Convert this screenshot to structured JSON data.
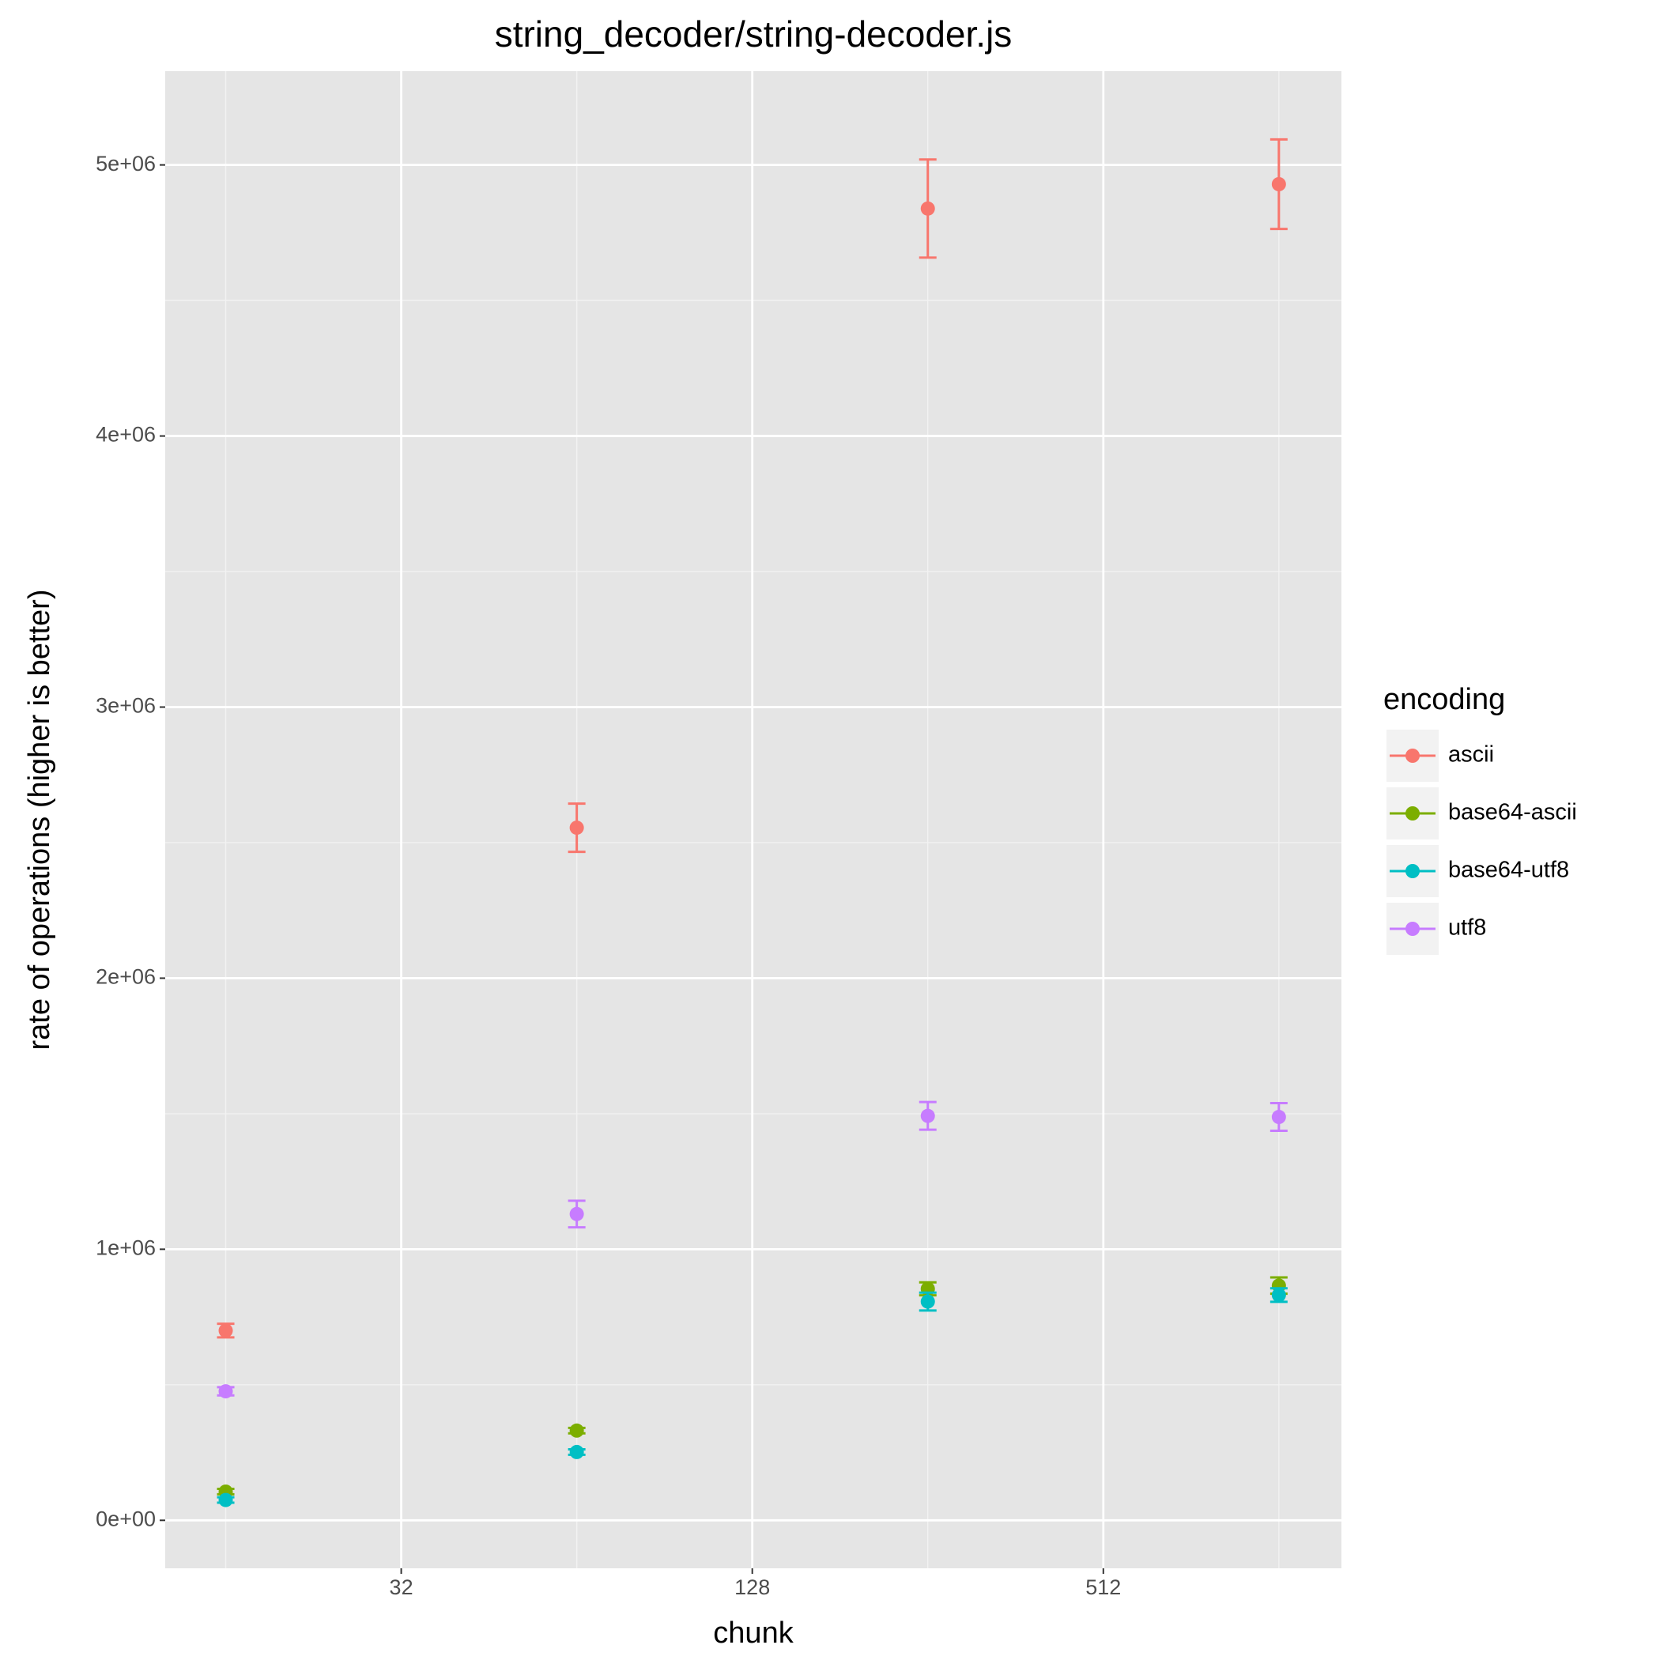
{
  "chart_data": {
    "type": "errorbar",
    "title": "string_decoder/string-decoder.js",
    "x_label": "chunk",
    "y_label": "rate of operations (higher is better)",
    "legend_title": "encoding",
    "legend_position": "right",
    "x": [
      16,
      64,
      256,
      1024
    ],
    "xlog_base": 2,
    "xlim": [
      12.6,
      1311
    ],
    "xticks": [
      32,
      128,
      512
    ],
    "ylim": [
      -177000,
      5346000
    ],
    "yticks": [
      {
        "value": 0,
        "label": "0e+00"
      },
      {
        "value": 1000000,
        "label": "1e+06"
      },
      {
        "value": 2000000,
        "label": "2e+06"
      },
      {
        "value": 3000000,
        "label": "3e+06"
      },
      {
        "value": 4000000,
        "label": "4e+06"
      },
      {
        "value": 5000000,
        "label": "5e+06"
      }
    ],
    "grid": true,
    "minor_grid": true,
    "series": [
      {
        "name": "ascii",
        "color": "#F8766D",
        "values": [
          700000,
          2555000,
          4839000,
          4929000
        ],
        "errors": [
          25000,
          89000,
          181000,
          165000
        ]
      },
      {
        "name": "base64-ascii",
        "color": "#7CAE00",
        "values": [
          106000,
          331000,
          854000,
          866000
        ],
        "errors": [
          10000,
          10000,
          24000,
          30000
        ]
      },
      {
        "name": "base64-utf8",
        "color": "#00BFC4",
        "values": [
          75000,
          252000,
          807000,
          831000
        ],
        "errors": [
          10000,
          10000,
          33000,
          25000
        ]
      },
      {
        "name": "utf8",
        "color": "#C77CFF",
        "values": [
          476000,
          1130000,
          1492000,
          1488000
        ],
        "errors": [
          15000,
          49000,
          51000,
          51000
        ]
      }
    ]
  }
}
